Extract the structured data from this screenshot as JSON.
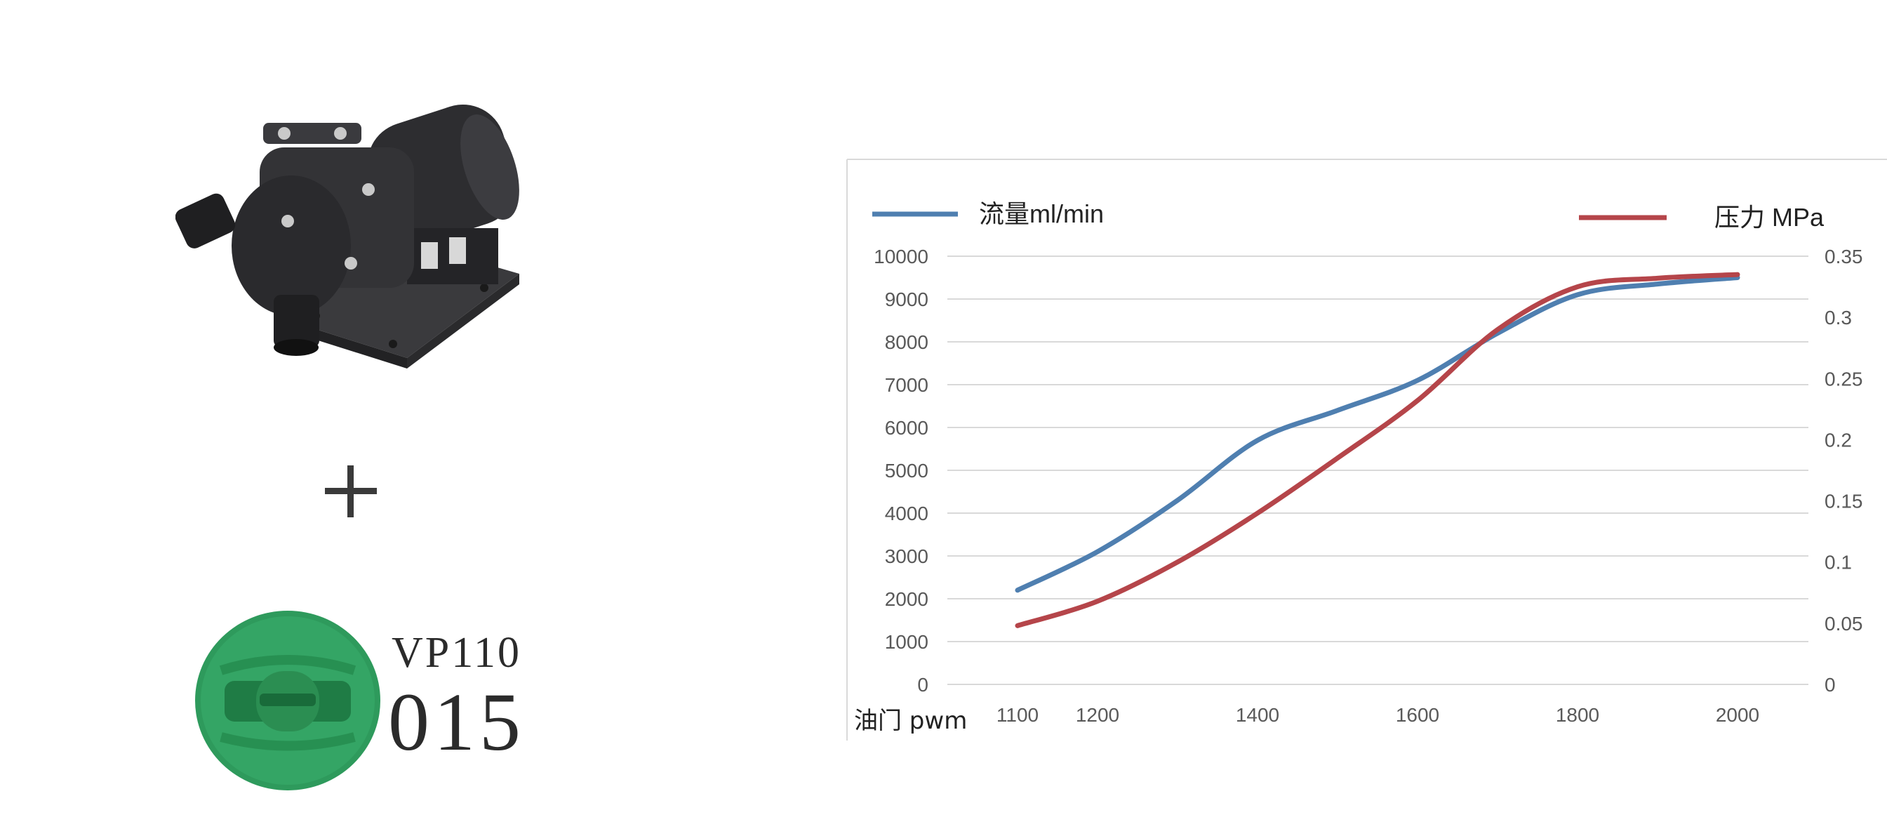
{
  "product": {
    "plus_symbol": "+",
    "nozzle_model": "VP110",
    "nozzle_code": "015",
    "nozzle_color": "#2e9a5c",
    "pump_color": "#2a2a2c"
  },
  "chart_data": {
    "type": "line",
    "xlabel": "油门 pwm",
    "x": [
      1100,
      1200,
      1300,
      1400,
      1500,
      1600,
      1700,
      1800,
      1900,
      2000
    ],
    "x_ticks": [
      "1100",
      "1200",
      "1300",
      "1400",
      "1500",
      "1600",
      "1700",
      "1800",
      "1900",
      "2000"
    ],
    "x_tick_labels": [
      "1100",
      "1200",
      "1400",
      "1600",
      "1800",
      "2000"
    ],
    "y_left": {
      "range": [
        0,
        10000
      ],
      "ticks": [
        "0",
        "1000",
        "2000",
        "3000",
        "4000",
        "5000",
        "6000",
        "7000",
        "8000",
        "9000",
        "10000"
      ]
    },
    "y_right": {
      "range": [
        0,
        0.35
      ],
      "ticks": [
        "0",
        "0.05",
        "0.1",
        "0.15",
        "0.2",
        "0.25",
        "0.3",
        "0.35"
      ]
    },
    "grid": true,
    "legend_placement": "top",
    "series": [
      {
        "name": "流量ml/min",
        "axis": "left",
        "color": "#4f7fb0",
        "values": [
          2200,
          3100,
          4300,
          5700,
          6400,
          7100,
          8200,
          9100,
          9350,
          9500
        ]
      },
      {
        "name": "压力 MPa",
        "axis": "right",
        "color": "#b5454a",
        "values": [
          0.048,
          0.068,
          0.1,
          0.14,
          0.185,
          0.232,
          0.29,
          0.325,
          0.332,
          0.335
        ]
      }
    ]
  }
}
